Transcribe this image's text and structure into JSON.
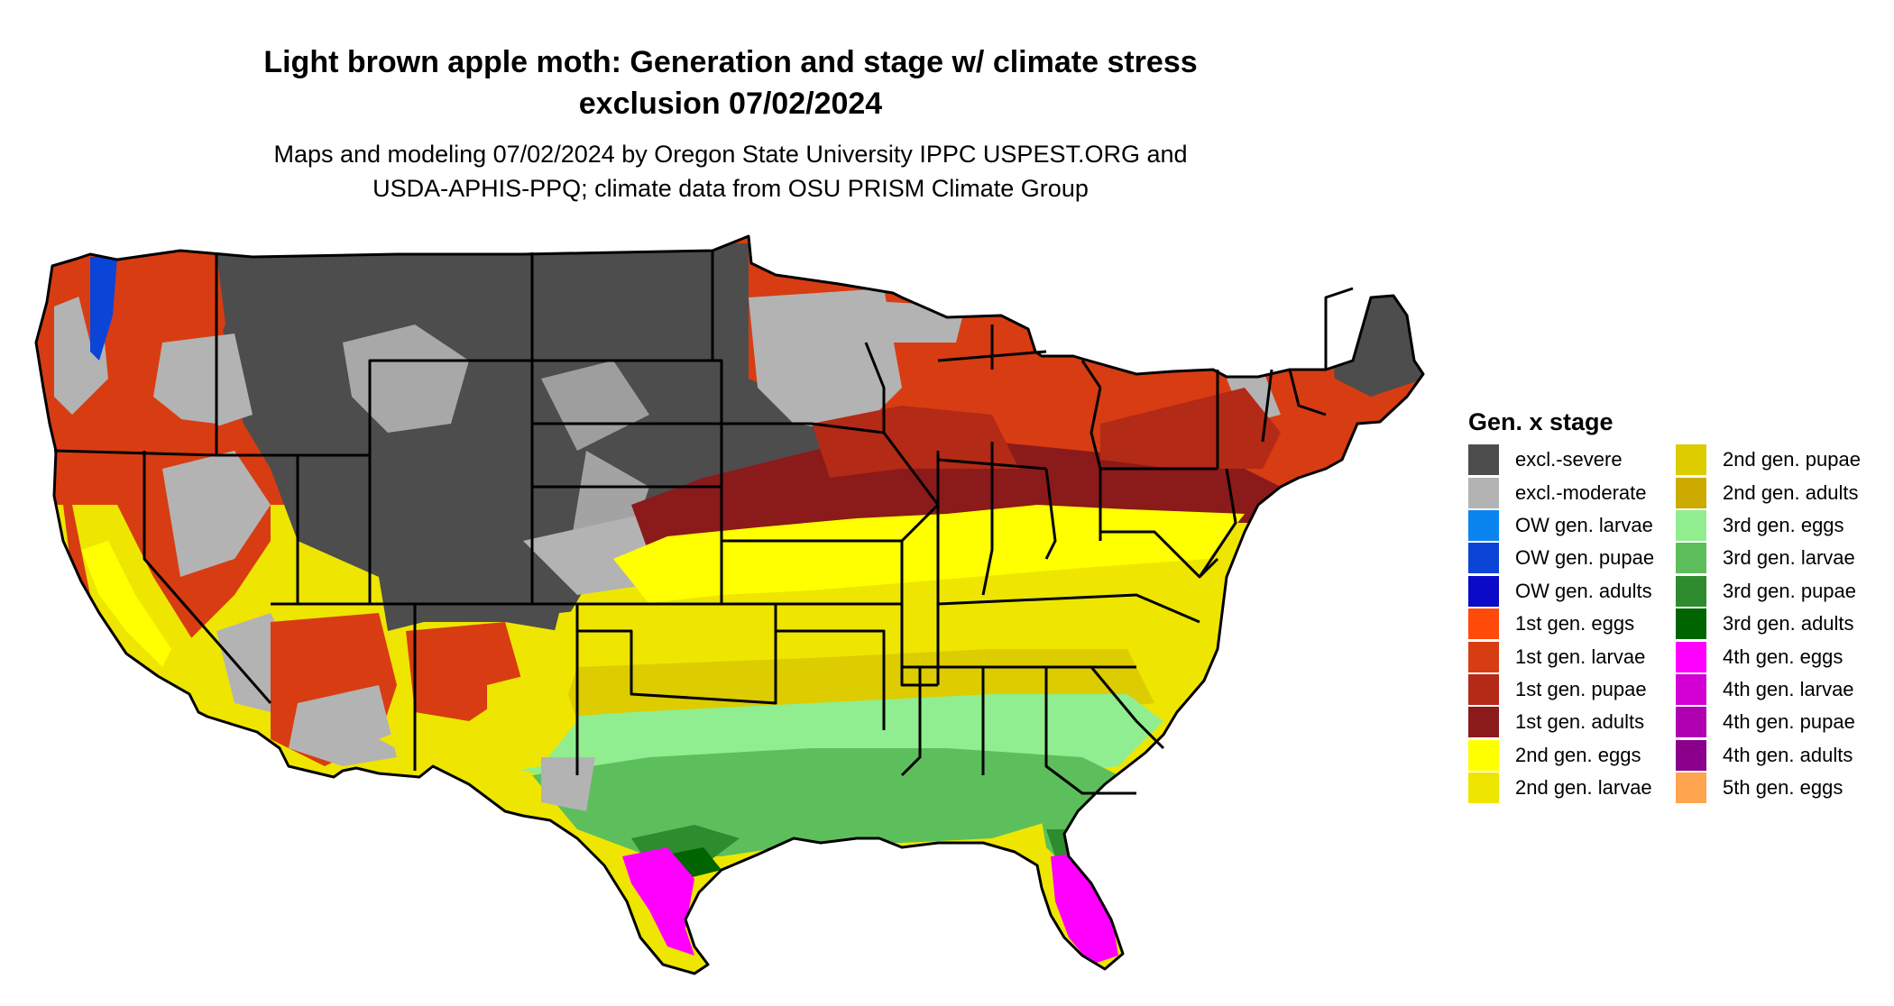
{
  "title": {
    "line1": "Light brown apple moth: Generation and stage w/ climate stress",
    "line2": "exclusion 07/02/2024"
  },
  "subtitle": {
    "line1": "Maps and modeling 07/02/2024 by Oregon State University IPPC USPEST.ORG and",
    "line2": "USDA-APHIS-PPQ; climate data from OSU PRISM Climate Group"
  },
  "legend": {
    "title": "Gen. x stage",
    "columns": [
      [
        {
          "label": "excl.-severe",
          "color": "#4d4d4d"
        },
        {
          "label": "excl.-moderate",
          "color": "#b3b3b3"
        },
        {
          "label": "OW gen. larvae",
          "color": "#0a84ef"
        },
        {
          "label": "OW gen. pupae",
          "color": "#0a45d8"
        },
        {
          "label": "OW gen. adults",
          "color": "#0a0ac8"
        },
        {
          "label": "1st gen. eggs",
          "color": "#ff4a0a"
        },
        {
          "label": "1st gen. larvae",
          "color": "#d83c12"
        },
        {
          "label": "1st gen. pupae",
          "color": "#b32a16"
        },
        {
          "label": "1st gen. adults",
          "color": "#8b1a1a"
        },
        {
          "label": "2nd gen. eggs",
          "color": "#ffff00"
        },
        {
          "label": "2nd gen. larvae",
          "color": "#eee600"
        }
      ],
      [
        {
          "label": "2nd gen. pupae",
          "color": "#ddcc00"
        },
        {
          "label": "2nd gen. adults",
          "color": "#ccaa00"
        },
        {
          "label": "3rd gen. eggs",
          "color": "#90ee90"
        },
        {
          "label": "3rd gen. larvae",
          "color": "#5cbf5c"
        },
        {
          "label": "3rd gen. pupae",
          "color": "#2e8b2e"
        },
        {
          "label": "3rd gen. adults",
          "color": "#006400"
        },
        {
          "label": "4th gen. eggs",
          "color": "#ff00ff"
        },
        {
          "label": "4th gen. larvae",
          "color": "#d200d2"
        },
        {
          "label": "4th gen. pupae",
          "color": "#b000b0"
        },
        {
          "label": "4th gen. adults",
          "color": "#8b008b"
        },
        {
          "label": "5th gen. eggs",
          "color": "#ffa54f"
        }
      ]
    ]
  },
  "map": {
    "region": "Contiguous United States",
    "colors": {
      "outline": "#000000"
    }
  }
}
